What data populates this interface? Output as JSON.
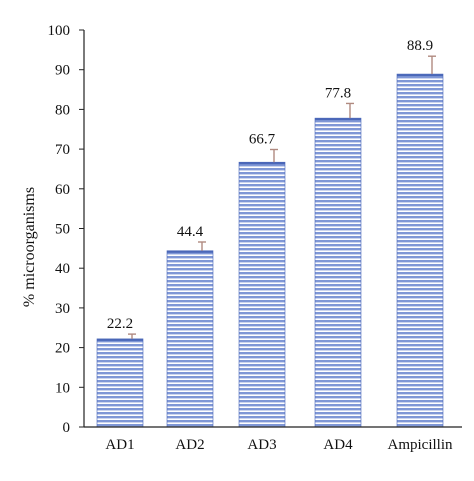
{
  "chart_data": {
    "type": "bar",
    "categories": [
      "AD1",
      "AD2",
      "AD3",
      "AD4",
      "Ampicillin"
    ],
    "values": [
      22.2,
      44.4,
      66.7,
      77.8,
      88.9
    ],
    "error_upper": [
      1.2,
      2.2,
      3.2,
      3.7,
      4.5
    ],
    "data_labels": [
      "22.2",
      "44.4",
      "66.7",
      "77.8",
      "88.9"
    ],
    "title": "",
    "xlabel": "",
    "ylabel": "% microorganisms",
    "ylim": [
      0,
      100
    ],
    "yticks": [
      0,
      10,
      20,
      30,
      40,
      50,
      60,
      70,
      80,
      90,
      100
    ],
    "grid": false,
    "legend": "none",
    "colors": {
      "bar_fill": "#7f97d6",
      "bar_stripe": "#ffffff",
      "bar_edge": "#4a67b8",
      "error_bar": "#b08a80",
      "axis": "#222222"
    }
  }
}
